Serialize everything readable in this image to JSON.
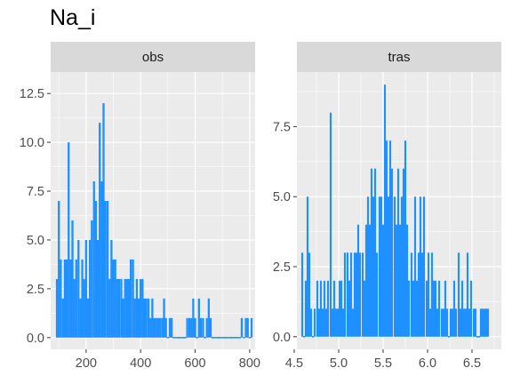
{
  "title": "Na_i",
  "colors": {
    "bar": "#1E90FF",
    "panel_bg": "#EBEBEB",
    "grid": "#FFFFFF",
    "strip_bg": "#D9D9D9"
  },
  "chart_data": [
    {
      "type": "bar",
      "facet": "obs",
      "xlim": [
        70,
        820
      ],
      "ylim": [
        -0.6,
        13.6
      ],
      "xticks": [
        200,
        400,
        600,
        800
      ],
      "xtick_labels": [
        "200",
        "400",
        "600",
        "800"
      ],
      "yticks": [
        0,
        2.5,
        5,
        7.5,
        10,
        12.5
      ],
      "ytick_labels": [
        "0.0",
        "2.5",
        "5.0",
        "7.5",
        "10.0",
        "12.5"
      ],
      "bin_width": 7.5,
      "bins": [
        {
          "x": 93,
          "y": 3
        },
        {
          "x": 100,
          "y": 7
        },
        {
          "x": 107,
          "y": 4
        },
        {
          "x": 115,
          "y": 2
        },
        {
          "x": 122,
          "y": 4
        },
        {
          "x": 129,
          "y": 4
        },
        {
          "x": 136,
          "y": 10
        },
        {
          "x": 143,
          "y": 4
        },
        {
          "x": 150,
          "y": 6
        },
        {
          "x": 157,
          "y": 3
        },
        {
          "x": 164,
          "y": 4
        },
        {
          "x": 172,
          "y": 5
        },
        {
          "x": 179,
          "y": 2
        },
        {
          "x": 186,
          "y": 4
        },
        {
          "x": 193,
          "y": 3
        },
        {
          "x": 200,
          "y": 5
        },
        {
          "x": 207,
          "y": 2
        },
        {
          "x": 214,
          "y": 5
        },
        {
          "x": 221,
          "y": 6
        },
        {
          "x": 229,
          "y": 8
        },
        {
          "x": 236,
          "y": 7
        },
        {
          "x": 243,
          "y": 5
        },
        {
          "x": 250,
          "y": 11
        },
        {
          "x": 257,
          "y": 8
        },
        {
          "x": 264,
          "y": 12
        },
        {
          "x": 271,
          "y": 7
        },
        {
          "x": 279,
          "y": 7
        },
        {
          "x": 286,
          "y": 3
        },
        {
          "x": 293,
          "y": 5
        },
        {
          "x": 300,
          "y": 4
        },
        {
          "x": 307,
          "y": 4
        },
        {
          "x": 314,
          "y": 3
        },
        {
          "x": 321,
          "y": 3
        },
        {
          "x": 329,
          "y": 3
        },
        {
          "x": 336,
          "y": 2
        },
        {
          "x": 343,
          "y": 3
        },
        {
          "x": 350,
          "y": 3
        },
        {
          "x": 357,
          "y": 3
        },
        {
          "x": 364,
          "y": 4
        },
        {
          "x": 372,
          "y": 4
        },
        {
          "x": 379,
          "y": 2
        },
        {
          "x": 386,
          "y": 3
        },
        {
          "x": 393,
          "y": 2
        },
        {
          "x": 400,
          "y": 3
        },
        {
          "x": 407,
          "y": 3
        },
        {
          "x": 414,
          "y": 2
        },
        {
          "x": 421,
          "y": 2
        },
        {
          "x": 429,
          "y": 2
        },
        {
          "x": 436,
          "y": 1
        },
        {
          "x": 443,
          "y": 2
        },
        {
          "x": 450,
          "y": 1
        },
        {
          "x": 457,
          "y": 1
        },
        {
          "x": 464,
          "y": 1
        },
        {
          "x": 471,
          "y": 1
        },
        {
          "x": 479,
          "y": 1
        },
        {
          "x": 486,
          "y": 2
        },
        {
          "x": 493,
          "y": 1
        },
        {
          "x": 500,
          "y": 0
        },
        {
          "x": 507,
          "y": 1
        },
        {
          "x": 514,
          "y": 1
        },
        {
          "x": 521,
          "y": 0
        },
        {
          "x": 529,
          "y": 0
        },
        {
          "x": 536,
          "y": 0
        },
        {
          "x": 543,
          "y": 0
        },
        {
          "x": 550,
          "y": 0
        },
        {
          "x": 557,
          "y": 0
        },
        {
          "x": 564,
          "y": 0
        },
        {
          "x": 571,
          "y": 1
        },
        {
          "x": 579,
          "y": 1
        },
        {
          "x": 586,
          "y": 1
        },
        {
          "x": 593,
          "y": 2
        },
        {
          "x": 600,
          "y": 1
        },
        {
          "x": 607,
          "y": 0
        },
        {
          "x": 614,
          "y": 2
        },
        {
          "x": 621,
          "y": 1
        },
        {
          "x": 629,
          "y": 1
        },
        {
          "x": 636,
          "y": 0
        },
        {
          "x": 643,
          "y": 1
        },
        {
          "x": 650,
          "y": 2
        },
        {
          "x": 657,
          "y": 1
        },
        {
          "x": 664,
          "y": 0
        },
        {
          "x": 671,
          "y": 0
        },
        {
          "x": 679,
          "y": 0
        },
        {
          "x": 686,
          "y": 0
        },
        {
          "x": 693,
          "y": 0
        },
        {
          "x": 700,
          "y": 0
        },
        {
          "x": 707,
          "y": 0
        },
        {
          "x": 714,
          "y": 0
        },
        {
          "x": 721,
          "y": 0
        },
        {
          "x": 729,
          "y": 0
        },
        {
          "x": 736,
          "y": 0
        },
        {
          "x": 743,
          "y": 0
        },
        {
          "x": 750,
          "y": 0
        },
        {
          "x": 757,
          "y": 0
        },
        {
          "x": 764,
          "y": 0
        },
        {
          "x": 771,
          "y": 1
        },
        {
          "x": 779,
          "y": 0
        },
        {
          "x": 786,
          "y": 1
        },
        {
          "x": 793,
          "y": 1
        },
        {
          "x": 800,
          "y": 0
        },
        {
          "x": 807,
          "y": 1
        }
      ]
    },
    {
      "type": "bar",
      "facet": "tras",
      "xlim": [
        4.53,
        6.83
      ],
      "ylim": [
        -0.45,
        9.45
      ],
      "xticks": [
        4.5,
        5.0,
        5.5,
        6.0,
        6.5
      ],
      "xtick_labels": [
        "4.5",
        "5.0",
        "5.5",
        "6.0",
        "6.5"
      ],
      "yticks": [
        0,
        2.5,
        5,
        7.5
      ],
      "ytick_labels": [
        "0.0",
        "2.5",
        "5.0",
        "7.5"
      ],
      "bin_width": 0.0213,
      "bins": [
        {
          "x": 4.59,
          "y": 3
        },
        {
          "x": 4.61,
          "y": 0
        },
        {
          "x": 4.63,
          "y": 2
        },
        {
          "x": 4.65,
          "y": 5
        },
        {
          "x": 4.67,
          "y": 3
        },
        {
          "x": 4.69,
          "y": 1
        },
        {
          "x": 4.71,
          "y": 0
        },
        {
          "x": 4.73,
          "y": 1
        },
        {
          "x": 4.76,
          "y": 2
        },
        {
          "x": 4.78,
          "y": 1
        },
        {
          "x": 4.8,
          "y": 2
        },
        {
          "x": 4.82,
          "y": 1
        },
        {
          "x": 4.84,
          "y": 2
        },
        {
          "x": 4.86,
          "y": 1
        },
        {
          "x": 4.88,
          "y": 2
        },
        {
          "x": 4.91,
          "y": 8
        },
        {
          "x": 4.93,
          "y": 1
        },
        {
          "x": 4.95,
          "y": 2
        },
        {
          "x": 4.97,
          "y": 1
        },
        {
          "x": 4.99,
          "y": 1
        },
        {
          "x": 5.01,
          "y": 2
        },
        {
          "x": 5.03,
          "y": 2
        },
        {
          "x": 5.05,
          "y": 1
        },
        {
          "x": 5.07,
          "y": 3
        },
        {
          "x": 5.1,
          "y": 3
        },
        {
          "x": 5.12,
          "y": 2
        },
        {
          "x": 5.14,
          "y": 3
        },
        {
          "x": 5.16,
          "y": 1
        },
        {
          "x": 5.18,
          "y": 3
        },
        {
          "x": 5.2,
          "y": 3
        },
        {
          "x": 5.22,
          "y": 4
        },
        {
          "x": 5.24,
          "y": 3
        },
        {
          "x": 5.27,
          "y": 3
        },
        {
          "x": 5.29,
          "y": 2
        },
        {
          "x": 5.31,
          "y": 4
        },
        {
          "x": 5.33,
          "y": 5
        },
        {
          "x": 5.35,
          "y": 4
        },
        {
          "x": 5.37,
          "y": 6
        },
        {
          "x": 5.39,
          "y": 5
        },
        {
          "x": 5.41,
          "y": 6
        },
        {
          "x": 5.43,
          "y": 3
        },
        {
          "x": 5.46,
          "y": 5
        },
        {
          "x": 5.48,
          "y": 5
        },
        {
          "x": 5.5,
          "y": 4
        },
        {
          "x": 5.52,
          "y": 9
        },
        {
          "x": 5.54,
          "y": 7
        },
        {
          "x": 5.56,
          "y": 5
        },
        {
          "x": 5.58,
          "y": 7
        },
        {
          "x": 5.6,
          "y": 6
        },
        {
          "x": 5.63,
          "y": 5
        },
        {
          "x": 5.65,
          "y": 4
        },
        {
          "x": 5.67,
          "y": 6
        },
        {
          "x": 5.69,
          "y": 4
        },
        {
          "x": 5.71,
          "y": 5
        },
        {
          "x": 5.73,
          "y": 6
        },
        {
          "x": 5.75,
          "y": 7
        },
        {
          "x": 5.77,
          "y": 4
        },
        {
          "x": 5.79,
          "y": 2
        },
        {
          "x": 5.82,
          "y": 3
        },
        {
          "x": 5.84,
          "y": 2
        },
        {
          "x": 5.86,
          "y": 5
        },
        {
          "x": 5.88,
          "y": 2
        },
        {
          "x": 5.9,
          "y": 3
        },
        {
          "x": 5.92,
          "y": 5
        },
        {
          "x": 5.94,
          "y": 3
        },
        {
          "x": 5.96,
          "y": 5
        },
        {
          "x": 5.99,
          "y": 2
        },
        {
          "x": 6.01,
          "y": 3
        },
        {
          "x": 6.03,
          "y": 1
        },
        {
          "x": 6.05,
          "y": 3
        },
        {
          "x": 6.07,
          "y": 2
        },
        {
          "x": 6.09,
          "y": 2
        },
        {
          "x": 6.11,
          "y": 1
        },
        {
          "x": 6.13,
          "y": 2
        },
        {
          "x": 6.16,
          "y": 1
        },
        {
          "x": 6.18,
          "y": 1
        },
        {
          "x": 6.2,
          "y": 2
        },
        {
          "x": 6.22,
          "y": 1
        },
        {
          "x": 6.24,
          "y": 0
        },
        {
          "x": 6.26,
          "y": 1
        },
        {
          "x": 6.28,
          "y": 1
        },
        {
          "x": 6.3,
          "y": 2
        },
        {
          "x": 6.32,
          "y": 1
        },
        {
          "x": 6.35,
          "y": 3
        },
        {
          "x": 6.37,
          "y": 1
        },
        {
          "x": 6.39,
          "y": 2
        },
        {
          "x": 6.41,
          "y": 1
        },
        {
          "x": 6.43,
          "y": 1
        },
        {
          "x": 6.45,
          "y": 3
        },
        {
          "x": 6.47,
          "y": 1
        },
        {
          "x": 6.49,
          "y": 2
        },
        {
          "x": 6.52,
          "y": 1
        },
        {
          "x": 6.54,
          "y": 1
        },
        {
          "x": 6.56,
          "y": 0
        },
        {
          "x": 6.58,
          "y": 0
        },
        {
          "x": 6.6,
          "y": 1
        },
        {
          "x": 6.62,
          "y": 1
        },
        {
          "x": 6.64,
          "y": 1
        },
        {
          "x": 6.66,
          "y": 1
        },
        {
          "x": 6.68,
          "y": 1
        }
      ]
    }
  ]
}
